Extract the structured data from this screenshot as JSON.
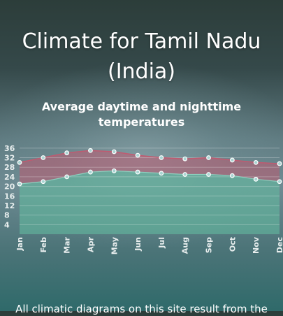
{
  "header": {
    "title_line1": "Climate for Tamil Nadu",
    "title_line2": "(India)"
  },
  "footer": {
    "text": "All climatic diagrams on this site result from the"
  },
  "colors": {
    "day_band": "#c6566e",
    "night_area": "#62b89e",
    "marker_stroke": "#ffffff",
    "marker_fill": "#a9d4d2",
    "grid": "#ffffff"
  },
  "chart_data": {
    "type": "area",
    "title": "Average daytime and nighttime temperatures",
    "categories": [
      "Jan",
      "Feb",
      "Mar",
      "Apr",
      "May",
      "Jun",
      "Jul",
      "Aug",
      "Sep",
      "Oct",
      "Nov",
      "Dec"
    ],
    "yticks": [
      4,
      8,
      12,
      16,
      20,
      24,
      28,
      32,
      36
    ],
    "ylim": [
      0,
      38
    ],
    "grid": true,
    "legend": "none",
    "series": [
      {
        "values": [
          30,
          32,
          34,
          35,
          34.5,
          33,
          32,
          31.5,
          32,
          31,
          30,
          29.5
        ]
      },
      {
        "values": [
          21,
          22,
          24,
          26,
          26.5,
          26,
          25.5,
          25,
          25,
          24.5,
          23,
          22
        ]
      }
    ]
  }
}
